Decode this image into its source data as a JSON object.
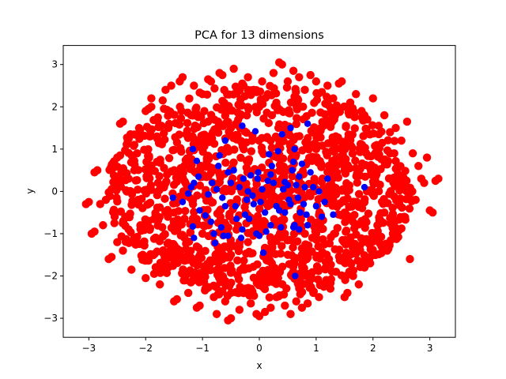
{
  "chart_data": {
    "type": "scatter",
    "title": "PCA for 13 dimensions",
    "xlabel": "x",
    "ylabel": "y",
    "xlim": [
      -3.45,
      3.45
    ],
    "ylim": [
      -3.45,
      3.45
    ],
    "xticks": [
      -3,
      -2,
      -1,
      0,
      1,
      2,
      3
    ],
    "yticks": [
      -3,
      -2,
      -1,
      0,
      1,
      2,
      3
    ],
    "grid": false,
    "legend": "none",
    "series": [
      {
        "color": "#ff0000",
        "note": "dense cloud of points filling an ellipse-like region roughly |x|<=3.1, |y|<=3.0",
        "points": [
          [
            -3.05,
            -0.3
          ],
          [
            -3.0,
            -0.25
          ],
          [
            -2.95,
            -1.0
          ],
          [
            -2.9,
            -0.95
          ],
          [
            -2.9,
            0.45
          ],
          [
            -2.85,
            0.5
          ],
          [
            -2.8,
            -0.3
          ],
          [
            -2.75,
            -0.8
          ],
          [
            -2.7,
            -0.2
          ],
          [
            -2.65,
            -1.6
          ],
          [
            -2.6,
            -1.55
          ],
          [
            -2.6,
            0.05
          ],
          [
            -2.55,
            -0.75
          ],
          [
            -2.5,
            -1.2
          ],
          [
            -2.5,
            0.8
          ],
          [
            -2.45,
            0.85
          ],
          [
            -2.45,
            1.6
          ],
          [
            -2.4,
            1.65
          ],
          [
            -2.4,
            -1.4
          ],
          [
            -2.35,
            -0.6
          ],
          [
            -2.3,
            0.3
          ],
          [
            -2.25,
            -1.85
          ],
          [
            -2.2,
            -1.1
          ],
          [
            -2.2,
            1.1
          ],
          [
            -2.15,
            0.9
          ],
          [
            -2.1,
            1.45
          ],
          [
            -2.05,
            -1.5
          ],
          [
            -2.0,
            -2.05
          ],
          [
            -2.0,
            1.9
          ],
          [
            -1.95,
            1.95
          ],
          [
            -1.95,
            -0.3
          ],
          [
            -1.9,
            2.0
          ],
          [
            -1.9,
            2.2
          ],
          [
            -1.85,
            -1.95
          ],
          [
            -1.8,
            1.3
          ],
          [
            -1.75,
            -2.2
          ],
          [
            -1.7,
            2.15
          ],
          [
            -1.65,
            2.4
          ],
          [
            -1.6,
            -1.5
          ],
          [
            -1.55,
            2.5
          ],
          [
            -1.5,
            -2.6
          ],
          [
            -1.45,
            -2.55
          ],
          [
            -1.4,
            2.6
          ],
          [
            -1.35,
            2.7
          ],
          [
            -1.3,
            -2.1
          ],
          [
            -1.25,
            -2.4
          ],
          [
            -1.2,
            1.8
          ],
          [
            -1.15,
            2.5
          ],
          [
            -1.1,
            -2.75
          ],
          [
            -1.05,
            -2.7
          ],
          [
            -1.0,
            2.3
          ],
          [
            -0.95,
            -2.3
          ],
          [
            -0.9,
            2.65
          ],
          [
            -0.85,
            2.6
          ],
          [
            -0.8,
            -2.5
          ],
          [
            -0.75,
            -2.9
          ],
          [
            -0.7,
            2.8
          ],
          [
            -0.65,
            2.75
          ],
          [
            -0.6,
            -2.6
          ],
          [
            -0.55,
            -3.05
          ],
          [
            -0.5,
            -3.0
          ],
          [
            -0.45,
            2.9
          ],
          [
            -0.4,
            2.45
          ],
          [
            -0.35,
            -2.8
          ],
          [
            -0.3,
            2.55
          ],
          [
            -0.25,
            -2.3
          ],
          [
            -0.2,
            2.7
          ],
          [
            -0.15,
            -2.65
          ],
          [
            -0.1,
            2.4
          ],
          [
            -0.05,
            -2.9
          ],
          [
            0.0,
            -2.95
          ],
          [
            0.05,
            2.6
          ],
          [
            0.1,
            -2.85
          ],
          [
            0.15,
            2.3
          ],
          [
            0.2,
            -2.75
          ],
          [
            0.25,
            2.8
          ],
          [
            0.3,
            -2.5
          ],
          [
            0.35,
            3.05
          ],
          [
            0.4,
            3.0
          ],
          [
            0.45,
            -2.7
          ],
          [
            0.5,
            2.6
          ],
          [
            0.55,
            -2.9
          ],
          [
            0.6,
            2.85
          ],
          [
            0.65,
            -2.6
          ],
          [
            0.7,
            2.7
          ],
          [
            0.75,
            -2.75
          ],
          [
            0.8,
            2.4
          ],
          [
            0.85,
            -2.65
          ],
          [
            0.9,
            2.75
          ],
          [
            0.95,
            -2.4
          ],
          [
            1.0,
            2.6
          ],
          [
            1.05,
            -2.5
          ],
          [
            1.1,
            2.35
          ],
          [
            1.15,
            -2.2
          ],
          [
            1.2,
            2.5
          ],
          [
            1.25,
            -2.3
          ],
          [
            1.3,
            2.2
          ],
          [
            1.35,
            -1.9
          ],
          [
            1.4,
            2.55
          ],
          [
            1.45,
            2.6
          ],
          [
            1.5,
            -2.5
          ],
          [
            1.55,
            -2.4
          ],
          [
            1.6,
            2.1
          ],
          [
            1.65,
            -2.0
          ],
          [
            1.7,
            2.3
          ],
          [
            1.75,
            -2.2
          ],
          [
            1.8,
            1.9
          ],
          [
            1.85,
            -1.8
          ],
          [
            1.9,
            1.7
          ],
          [
            1.95,
            -1.7
          ],
          [
            2.0,
            2.2
          ],
          [
            2.05,
            -1.5
          ],
          [
            2.1,
            1.55
          ],
          [
            2.15,
            -1.3
          ],
          [
            2.2,
            1.8
          ],
          [
            2.25,
            -1.4
          ],
          [
            2.3,
            1.4
          ],
          [
            2.35,
            -1.0
          ],
          [
            2.4,
            1.5
          ],
          [
            2.45,
            -0.9
          ],
          [
            2.5,
            1.2
          ],
          [
            2.55,
            -0.6
          ],
          [
            2.6,
            1.65
          ],
          [
            2.65,
            -1.6
          ],
          [
            2.7,
            0.9
          ],
          [
            2.75,
            -0.2
          ],
          [
            2.8,
            0.6
          ],
          [
            2.85,
            0.3
          ],
          [
            2.9,
            0.2
          ],
          [
            2.95,
            0.8
          ],
          [
            3.0,
            -0.45
          ],
          [
            3.05,
            -0.5
          ],
          [
            3.1,
            0.25
          ],
          [
            3.15,
            0.3
          ],
          [
            -2.0,
            0.0
          ],
          [
            -1.5,
            0.5
          ],
          [
            -1.0,
            1.0
          ],
          [
            -0.5,
            1.5
          ],
          [
            0.0,
            2.0
          ],
          [
            0.5,
            1.5
          ],
          [
            1.0,
            1.0
          ],
          [
            1.5,
            0.5
          ],
          [
            2.0,
            0.0
          ],
          [
            1.5,
            -0.5
          ],
          [
            1.0,
            -1.0
          ],
          [
            0.5,
            -1.5
          ],
          [
            0.0,
            -2.0
          ],
          [
            -0.5,
            -1.5
          ],
          [
            -1.0,
            -1.0
          ],
          [
            -1.5,
            -0.5
          ],
          [
            -1.8,
            0.7
          ],
          [
            -1.2,
            -1.6
          ],
          [
            -0.6,
            1.9
          ],
          [
            0.6,
            -1.9
          ],
          [
            1.2,
            1.6
          ],
          [
            1.8,
            -0.7
          ],
          [
            -2.2,
            0.5
          ],
          [
            2.2,
            -0.5
          ],
          [
            -1.6,
            1.5
          ],
          [
            1.6,
            -1.5
          ],
          [
            -0.2,
            -1.2
          ],
          [
            0.2,
            1.2
          ],
          [
            -2.3,
            -0.9
          ],
          [
            2.3,
            0.9
          ],
          [
            -1.3,
            0.2
          ],
          [
            1.3,
            -0.2
          ]
        ]
      },
      {
        "color": "#0000ff",
        "points": [
          [
            -1.52,
            -0.15
          ],
          [
            -1.35,
            -0.25
          ],
          [
            -1.25,
            -0.05
          ],
          [
            -1.2,
            0.1
          ],
          [
            -1.17,
            1.0
          ],
          [
            -1.17,
            -0.83
          ],
          [
            -1.15,
            0.2
          ],
          [
            -1.15,
            -1.1
          ],
          [
            -1.1,
            0.72
          ],
          [
            -1.07,
            0.35
          ],
          [
            -1.05,
            -0.45
          ],
          [
            -0.95,
            -0.57
          ],
          [
            -0.9,
            -0.07
          ],
          [
            -0.85,
            -0.72
          ],
          [
            -0.83,
            0.2
          ],
          [
            -0.8,
            -1.0
          ],
          [
            -0.78,
            -1.22
          ],
          [
            -0.75,
            0.05
          ],
          [
            -0.72,
            0.6
          ],
          [
            -0.7,
            0.85
          ],
          [
            -0.67,
            -0.85
          ],
          [
            -0.65,
            -0.15
          ],
          [
            -0.63,
            -1.05
          ],
          [
            -0.6,
            1.2
          ],
          [
            -0.55,
            0.45
          ],
          [
            -0.55,
            -1.05
          ],
          [
            -0.5,
            0.2
          ],
          [
            -0.45,
            0.5
          ],
          [
            -0.42,
            -0.35
          ],
          [
            -0.4,
            -0.65
          ],
          [
            -0.35,
            0.1
          ],
          [
            -0.32,
            -1.1
          ],
          [
            -0.3,
            1.55
          ],
          [
            -0.28,
            0.3
          ],
          [
            -0.25,
            -0.55
          ],
          [
            -0.22,
            -0.2
          ],
          [
            -0.2,
            0.0
          ],
          [
            -0.18,
            -0.65
          ],
          [
            -0.15,
            0.38
          ],
          [
            -0.12,
            -0.1
          ],
          [
            -0.1,
            -0.3
          ],
          [
            -0.07,
            1.42
          ],
          [
            -0.05,
            -1.0
          ],
          [
            -0.03,
            0.3
          ],
          [
            0.0,
            -1.05
          ],
          [
            0.02,
            -0.25
          ],
          [
            0.05,
            0.05
          ],
          [
            0.07,
            -1.45
          ],
          [
            0.1,
            -0.5
          ],
          [
            0.12,
            -0.95
          ],
          [
            0.15,
            0.25
          ],
          [
            0.17,
            0.88
          ],
          [
            0.2,
            0.4
          ],
          [
            0.22,
            0.6
          ],
          [
            0.25,
            0.2
          ],
          [
            0.3,
            -0.35
          ],
          [
            0.33,
            0.95
          ],
          [
            0.35,
            -0.45
          ],
          [
            0.38,
            -0.85
          ],
          [
            0.4,
            1.35
          ],
          [
            0.42,
            0.05
          ],
          [
            0.45,
            -0.5
          ],
          [
            0.5,
            0.15
          ],
          [
            0.52,
            -0.2
          ],
          [
            0.55,
            -0.3
          ],
          [
            0.58,
            0.5
          ],
          [
            0.6,
            0.7
          ],
          [
            0.6,
            -0.85
          ],
          [
            0.62,
            1.0
          ],
          [
            0.63,
            -2.0
          ],
          [
            0.65,
            0.15
          ],
          [
            0.68,
            -0.15
          ],
          [
            0.7,
            0.35
          ],
          [
            0.7,
            -0.9
          ],
          [
            0.72,
            -0.5
          ],
          [
            0.75,
            0.65
          ],
          [
            0.78,
            -0.3
          ],
          [
            0.8,
            0.1
          ],
          [
            0.83,
            -0.55
          ],
          [
            0.85,
            -0.8
          ],
          [
            0.85,
            1.6
          ],
          [
            0.9,
            0.45
          ],
          [
            0.95,
            0.1
          ],
          [
            1.0,
            -0.35
          ],
          [
            1.05,
            0.0
          ],
          [
            1.1,
            -0.6
          ],
          [
            1.15,
            -0.25
          ],
          [
            1.2,
            0.3
          ],
          [
            1.3,
            -0.55
          ],
          [
            1.85,
            0.1
          ],
          [
            0.62,
            -0.8
          ],
          [
            0.55,
            1.5
          ],
          [
            0.45,
            0.22
          ],
          [
            -0.6,
            -0.35
          ],
          [
            -0.02,
            0.45
          ],
          [
            0.2,
            -0.8
          ],
          [
            -0.3,
            -0.9
          ]
        ]
      }
    ]
  }
}
